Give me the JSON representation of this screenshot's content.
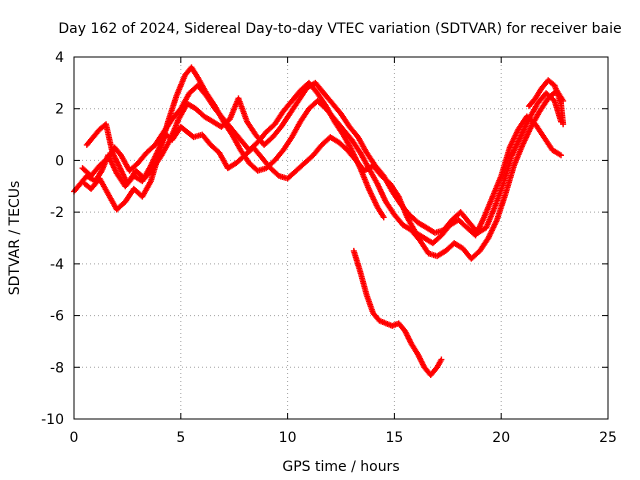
{
  "chart_data": {
    "type": "scatter",
    "title": "Day 162 of 2024, Sidereal Day-to-day VTEC variation (SDTVAR) for receiver baie",
    "xlabel": "GPS time / hours",
    "ylabel": "SDTVAR / TECUs",
    "xlim": [
      0,
      25
    ],
    "ylim": [
      -10,
      4
    ],
    "xticks": [
      0,
      5,
      10,
      15,
      20,
      25
    ],
    "xtick_labels": [
      "0",
      "5",
      "10",
      "15",
      "20",
      "25"
    ],
    "yticks": [
      -10,
      -8,
      -6,
      -4,
      -2,
      0,
      2,
      4
    ],
    "ytick_labels": [
      "-10",
      "-8",
      "-6",
      "-4",
      "-2",
      "0",
      "2",
      "4"
    ],
    "grid": true,
    "marker": "plus",
    "series": [
      {
        "name": "track-a",
        "color": "#ff0000",
        "x": [
          0.0,
          0.3,
          0.6,
          1.0,
          1.3,
          1.6,
          2.0,
          2.4,
          2.8,
          3.2,
          3.6,
          4.0,
          4.3,
          4.6,
          5.0,
          5.3,
          5.6,
          6.0,
          6.4,
          6.8,
          7.2,
          7.6,
          8.0,
          8.4,
          8.8,
          9.2,
          9.6,
          10.0,
          10.4,
          10.8,
          11.2,
          11.6,
          12.0,
          12.4,
          12.8,
          13.2,
          13.6,
          14.0,
          14.4,
          14.8,
          15.2,
          15.6,
          16.0,
          16.4,
          16.8,
          17.2,
          17.6,
          18.0,
          18.4,
          18.8,
          19.2,
          19.6,
          20.0,
          20.4,
          20.8,
          21.2,
          21.6,
          22.0,
          22.4,
          22.8
        ],
        "y": [
          -1.2,
          -0.9,
          -0.6,
          -0.8,
          -0.4,
          0.2,
          -0.5,
          -1.0,
          -0.6,
          -0.8,
          -0.2,
          0.5,
          1.0,
          0.8,
          1.3,
          1.1,
          0.9,
          1.0,
          0.6,
          0.3,
          -0.3,
          -0.1,
          0.2,
          0.5,
          0.1,
          -0.3,
          -0.6,
          -0.7,
          -0.4,
          -0.1,
          0.2,
          0.6,
          0.9,
          0.7,
          0.4,
          0.0,
          -0.4,
          -0.2,
          -0.6,
          -0.9,
          -1.4,
          -2.2,
          -2.8,
          -3.0,
          -3.2,
          -2.9,
          -2.5,
          -2.3,
          -2.6,
          -2.9,
          -2.2,
          -1.4,
          -0.6,
          0.5,
          1.2,
          1.7,
          1.4,
          0.9,
          0.4,
          0.2
        ]
      },
      {
        "name": "track-b",
        "color": "#ff0000",
        "x": [
          0.6,
          0.9,
          1.2,
          1.5,
          1.8,
          2.1,
          2.5,
          2.9,
          3.3,
          3.7,
          4.1,
          4.5,
          4.9,
          5.3,
          5.7,
          6.1,
          6.5,
          6.9,
          7.3,
          7.7,
          8.1,
          8.5,
          8.9,
          9.3,
          9.7,
          10.1,
          10.5,
          10.9,
          11.3,
          11.7,
          12.1,
          12.5,
          12.9,
          13.3,
          13.7,
          14.1,
          14.5,
          14.9,
          15.3,
          15.7,
          16.1,
          16.5,
          16.9,
          17.3,
          17.7,
          18.1,
          18.5,
          18.9,
          19.3,
          19.7,
          20.1,
          20.5,
          20.9,
          21.3,
          21.7,
          22.1,
          22.5,
          22.8
        ],
        "y": [
          0.6,
          0.9,
          1.2,
          1.4,
          0.3,
          -0.2,
          -0.9,
          -0.4,
          -0.7,
          -0.3,
          0.2,
          0.8,
          1.6,
          2.2,
          2.0,
          1.7,
          1.5,
          1.3,
          1.6,
          2.4,
          1.5,
          1.0,
          0.6,
          0.9,
          1.3,
          1.8,
          2.3,
          2.8,
          3.0,
          2.6,
          2.2,
          1.8,
          1.3,
          0.9,
          0.3,
          -0.2,
          -0.6,
          -1.2,
          -1.7,
          -2.1,
          -2.4,
          -2.6,
          -2.8,
          -2.7,
          -2.3,
          -2.0,
          -2.4,
          -2.8,
          -2.6,
          -1.8,
          -0.9,
          0.2,
          0.9,
          1.6,
          2.2,
          2.6,
          2.3,
          1.5
        ]
      },
      {
        "name": "track-c",
        "color": "#ff0000",
        "x": [
          0.5,
          0.8,
          1.2,
          1.6,
          2.0,
          2.4,
          2.8,
          3.2,
          3.6,
          4.0,
          4.4,
          4.8,
          5.2,
          5.5,
          5.8,
          6.2,
          6.6,
          7.0,
          7.4,
          7.8,
          8.2,
          8.6,
          9.0,
          9.4,
          9.8,
          10.2,
          10.6,
          11.0,
          11.4,
          11.8,
          12.2,
          12.6,
          13.0,
          13.4,
          13.8,
          14.2,
          14.6,
          15.0,
          15.4,
          15.8,
          16.2,
          16.6,
          17.0,
          17.4,
          17.8,
          18.2,
          18.6,
          19.0,
          19.4,
          19.8,
          20.2,
          20.6,
          21.0,
          21.4,
          21.8,
          22.2,
          22.6,
          22.9
        ],
        "y": [
          -0.9,
          -1.1,
          -0.7,
          -1.3,
          -1.9,
          -1.6,
          -1.1,
          -1.4,
          -0.8,
          0.3,
          1.5,
          2.5,
          3.3,
          3.6,
          3.2,
          2.6,
          2.1,
          1.5,
          1.0,
          0.4,
          -0.1,
          -0.4,
          -0.3,
          0.0,
          0.4,
          0.9,
          1.5,
          2.0,
          2.3,
          2.0,
          1.6,
          1.2,
          0.8,
          0.3,
          -0.3,
          -0.9,
          -1.6,
          -2.1,
          -2.5,
          -2.7,
          -3.1,
          -3.6,
          -3.7,
          -3.5,
          -3.2,
          -3.4,
          -3.8,
          -3.5,
          -3.0,
          -2.3,
          -1.3,
          -0.2,
          0.6,
          1.3,
          1.9,
          2.4,
          2.7,
          2.3
        ]
      },
      {
        "name": "track-d",
        "color": "#ff0000",
        "x": [
          0.4,
          0.8,
          1.2,
          1.6,
          1.9,
          2.2,
          2.6,
          3.0,
          3.4,
          3.8,
          4.2,
          4.6,
          5.0,
          5.4,
          5.8,
          6.2,
          6.6,
          7.0,
          7.4,
          7.8,
          8.2,
          8.6,
          9.0,
          9.4,
          9.8,
          10.2,
          10.6,
          11.0,
          11.4,
          11.8,
          12.2,
          12.6,
          13.0,
          13.4,
          13.8,
          14.2,
          14.5
        ],
        "y": [
          -0.3,
          -0.6,
          -0.2,
          0.1,
          0.5,
          0.2,
          -0.4,
          -0.1,
          0.3,
          0.6,
          1.1,
          1.6,
          2.0,
          2.6,
          2.9,
          2.5,
          2.0,
          1.6,
          1.2,
          0.8,
          0.4,
          0.7,
          1.1,
          1.4,
          1.9,
          2.3,
          2.7,
          3.0,
          2.6,
          2.1,
          1.5,
          1.0,
          0.4,
          -0.3,
          -1.1,
          -1.8,
          -2.2
        ]
      },
      {
        "name": "track-e",
        "color": "#ff0000",
        "x": [
          21.3,
          21.6,
          21.9,
          22.2,
          22.5,
          22.8,
          22.9
        ],
        "y": [
          2.1,
          2.4,
          2.8,
          3.1,
          2.9,
          2.2,
          1.4
        ]
      },
      {
        "name": "track-f",
        "color": "#ff0000",
        "x": [
          13.1,
          13.4,
          13.7,
          14.0,
          14.3,
          14.6,
          14.9,
          15.2,
          15.5,
          15.8,
          16.1,
          16.4,
          16.7,
          17.0,
          17.2
        ],
        "y": [
          -3.5,
          -4.3,
          -5.2,
          -5.9,
          -6.2,
          -6.3,
          -6.4,
          -6.3,
          -6.6,
          -7.1,
          -7.5,
          -8.0,
          -8.3,
          -8.0,
          -7.7
        ]
      }
    ]
  }
}
